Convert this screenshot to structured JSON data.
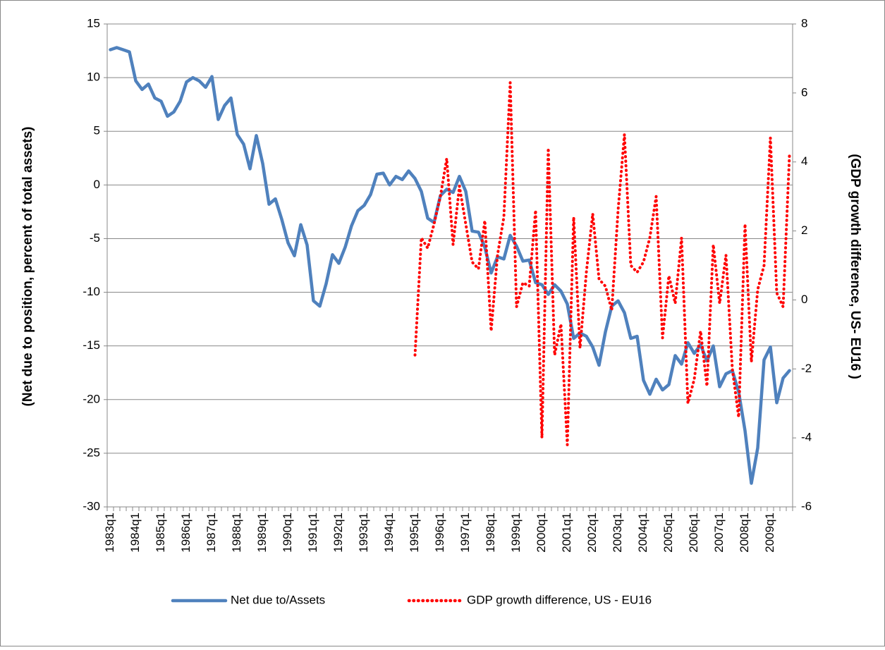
{
  "chart_data": {
    "type": "line",
    "categories": [
      "1983q1",
      null,
      null,
      null,
      "1984q1",
      null,
      null,
      null,
      "1985q1",
      null,
      null,
      null,
      "1986q1",
      null,
      null,
      null,
      "1987q1",
      null,
      null,
      null,
      "1988q1",
      null,
      null,
      null,
      "1989q1",
      null,
      null,
      null,
      "1990q1",
      null,
      null,
      null,
      "1991q1",
      null,
      null,
      null,
      "1992q1",
      null,
      null,
      null,
      "1993q1",
      null,
      null,
      null,
      "1994q1",
      null,
      null,
      null,
      "1995q1",
      null,
      null,
      null,
      "1996q1",
      null,
      null,
      null,
      "1997q1",
      null,
      null,
      null,
      "1998q1",
      null,
      null,
      null,
      "1999q1",
      null,
      null,
      null,
      "2000q1",
      null,
      null,
      null,
      "2001q1",
      null,
      null,
      null,
      "2002q1",
      null,
      null,
      null,
      "2003q1",
      null,
      null,
      null,
      "2004q1",
      null,
      null,
      null,
      "2005q1",
      null,
      null,
      null,
      "2006q1",
      null,
      null,
      null,
      "2007q1",
      null,
      null,
      null,
      "2008q1",
      null,
      null,
      null,
      "2009q1",
      null,
      null,
      null
    ],
    "series": [
      {
        "name": "Net due to/Assets",
        "color": "#4f81bd",
        "axis": "y",
        "values": [
          12.6,
          12.8,
          12.6,
          12.4,
          9.7,
          8.9,
          9.4,
          8.1,
          7.8,
          6.4,
          6.8,
          7.8,
          9.6,
          10.0,
          9.7,
          9.1,
          10.1,
          6.1,
          7.4,
          8.1,
          4.7,
          3.8,
          1.5,
          4.6,
          2.0,
          -1.8,
          -1.3,
          -3.2,
          -5.4,
          -6.6,
          -3.7,
          -5.6,
          -10.8,
          -11.3,
          -9.2,
          -6.5,
          -7.3,
          -5.8,
          -3.8,
          -2.4,
          -1.9,
          -0.9,
          1.0,
          1.1,
          0.0,
          0.8,
          0.5,
          1.3,
          0.6,
          -0.6,
          -3.1,
          -3.5,
          -1.0,
          -0.4,
          -0.7,
          0.8,
          -0.6,
          -4.3,
          -4.4,
          -5.8,
          -8.2,
          -6.7,
          -6.9,
          -4.7,
          -5.7,
          -7.1,
          -7.0,
          -9.1,
          -9.3,
          -10.2,
          -9.3,
          -9.9,
          -11.1,
          -14.3,
          -13.8,
          -14.1,
          -15.1,
          -16.8,
          -13.7,
          -11.3,
          -10.8,
          -11.9,
          -14.3,
          -14.1,
          -18.2,
          -19.5,
          -18.1,
          -19.1,
          -18.6,
          -15.9,
          -16.7,
          -14.7,
          -15.7,
          -14.9,
          -16.4,
          -15.0,
          -18.8,
          -17.6,
          -17.3,
          -19.3,
          -22.9,
          -27.8,
          -24.5,
          -16.3,
          -15.1,
          -20.3,
          -18.0,
          -17.3
        ]
      },
      {
        "name": "GDP growth difference, US - EU16",
        "color": "#ff0000",
        "axis": "y2",
        "values": [
          null,
          null,
          null,
          null,
          null,
          null,
          null,
          null,
          null,
          null,
          null,
          null,
          null,
          null,
          null,
          null,
          null,
          null,
          null,
          null,
          null,
          null,
          null,
          null,
          null,
          null,
          null,
          null,
          null,
          null,
          null,
          null,
          null,
          null,
          null,
          null,
          null,
          null,
          null,
          null,
          null,
          null,
          null,
          null,
          null,
          null,
          null,
          null,
          -1.6,
          1.8,
          1.5,
          2.2,
          3.0,
          4.1,
          1.6,
          3.3,
          2.2,
          1.1,
          0.9,
          2.3,
          -0.9,
          1.3,
          2.4,
          6.3,
          -0.2,
          0.5,
          0.4,
          2.6,
          -4.0,
          4.4,
          -1.6,
          -0.7,
          -4.2,
          2.4,
          -1.4,
          0.8,
          2.5,
          0.6,
          0.4,
          -0.3,
          2.6,
          4.8,
          1.0,
          0.8,
          1.1,
          1.8,
          3.0,
          -1.1,
          0.7,
          -0.1,
          1.8,
          -3.0,
          -2.3,
          -0.9,
          -2.5,
          1.6,
          -0.1,
          1.3,
          -2.0,
          -3.4,
          2.2,
          -1.8,
          0.3,
          1.0,
          4.7,
          0.2,
          -0.2,
          4.2
        ]
      }
    ],
    "y_label": "(Net due to position, percent of total assets)",
    "y2_label": "(GDP growth difference, US- EU16 )",
    "ylim": [
      -30,
      15
    ],
    "yticks": [
      -30,
      -25,
      -20,
      -15,
      -10,
      -5,
      0,
      5,
      10,
      15
    ],
    "y2lim": [
      -6,
      8
    ],
    "y2ticks": [
      -6,
      -4,
      -2,
      0,
      2,
      4,
      6,
      8
    ],
    "grid": true,
    "legend": "bottom"
  }
}
